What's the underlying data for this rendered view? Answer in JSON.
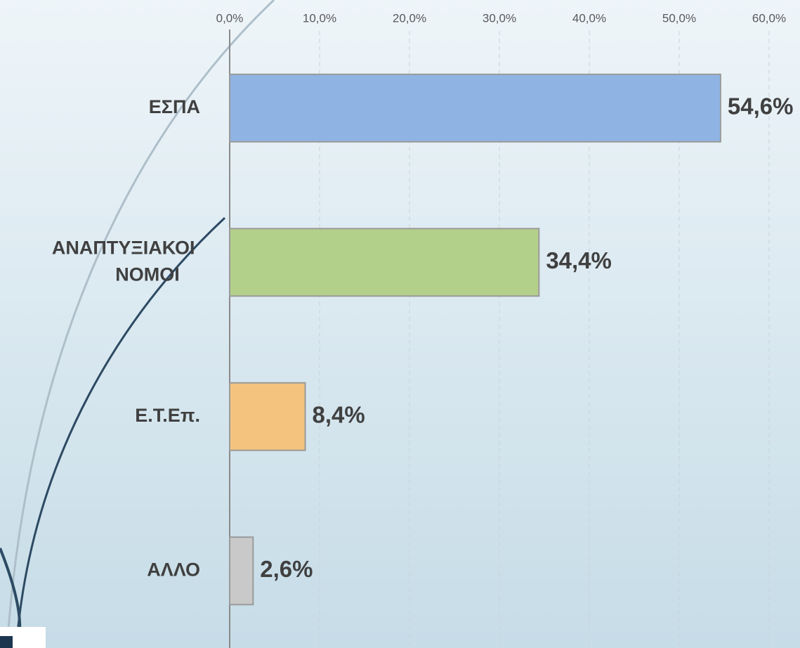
{
  "chart_data": {
    "type": "bar",
    "orientation": "horizontal",
    "categories": [
      "ΕΣΠΑ",
      "ΑΝΑΠΤΥΞΙΑΚΟΙ ΝΟΜΟΙ",
      "Ε.Τ.Επ.",
      "ΑΛΛΟ"
    ],
    "values": [
      54.6,
      34.4,
      8.4,
      2.6
    ],
    "value_labels": [
      "54,6%",
      "34,4%",
      "8,4%",
      "2,6%"
    ],
    "colors": [
      "#8fb4e3",
      "#b3d08a",
      "#f4c47e",
      "#c9c9c9"
    ],
    "xlim": [
      0,
      60
    ],
    "xticks": [
      {
        "value": 0,
        "label": "0,0%"
      },
      {
        "value": 10,
        "label": "10,0%"
      },
      {
        "value": 20,
        "label": "20,0%"
      },
      {
        "value": 30,
        "label": "30,0%"
      },
      {
        "value": 40,
        "label": "40,0%"
      },
      {
        "value": 50,
        "label": "50,0%"
      },
      {
        "value": 60,
        "label": "60,0%"
      }
    ],
    "grid": true
  }
}
